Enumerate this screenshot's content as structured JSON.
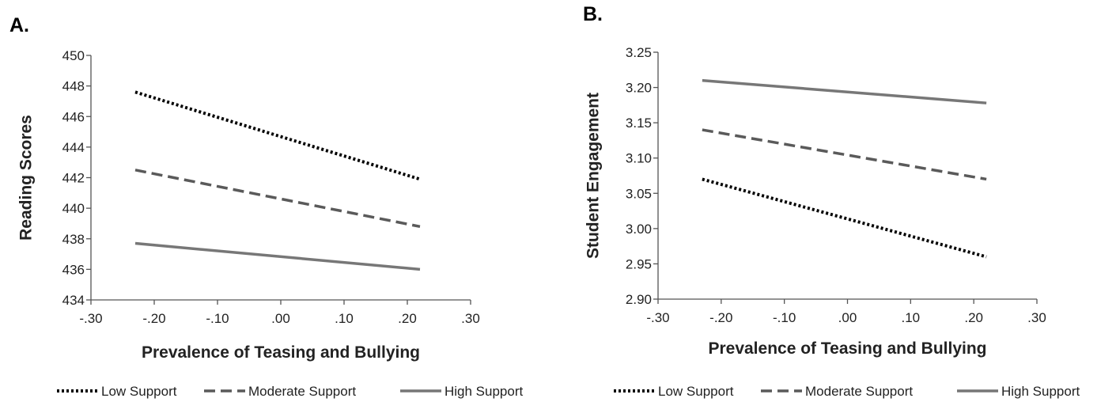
{
  "chart_data": [
    {
      "panel": "A.",
      "type": "line",
      "xlabel": "Prevalence of Teasing and Bullying",
      "ylabel": "Reading Scores",
      "xlim": [
        -0.3,
        0.3
      ],
      "ylim": [
        434,
        450
      ],
      "xticks": [
        -0.3,
        -0.2,
        -0.1,
        0.0,
        0.1,
        0.2,
        0.3
      ],
      "xtick_labels": [
        "-.30",
        "-.20",
        "-.10",
        ".00",
        ".10",
        ".20",
        ".30"
      ],
      "yticks": [
        434,
        436,
        438,
        440,
        442,
        444,
        446,
        448,
        450
      ],
      "ytick_labels": [
        "434",
        "436",
        "438",
        "440",
        "442",
        "444",
        "446",
        "448",
        "450"
      ],
      "grid": false,
      "legend_position": "bottom",
      "series": [
        {
          "name": "Low Support",
          "style": "dotted",
          "color": "#000000",
          "x": [
            -0.23,
            0.22
          ],
          "y": [
            447.6,
            441.9
          ]
        },
        {
          "name": "Moderate Support",
          "style": "dashed",
          "color": "#5a5a5a",
          "x": [
            -0.23,
            0.22
          ],
          "y": [
            442.5,
            438.8
          ]
        },
        {
          "name": "High Support",
          "style": "solid",
          "color": "#777777",
          "x": [
            -0.23,
            0.22
          ],
          "y": [
            437.7,
            436.0
          ]
        }
      ]
    },
    {
      "panel": "B.",
      "type": "line",
      "xlabel": "Prevalence of Teasing and Bullying",
      "ylabel": "Student Engagement",
      "xlim": [
        -0.3,
        0.3
      ],
      "ylim": [
        2.9,
        3.25
      ],
      "xticks": [
        -0.3,
        -0.2,
        -0.1,
        0.0,
        0.1,
        0.2,
        0.3
      ],
      "xtick_labels": [
        "-.30",
        "-.20",
        "-.10",
        ".00",
        ".10",
        ".20",
        ".30"
      ],
      "yticks": [
        2.9,
        2.95,
        3.0,
        3.05,
        3.1,
        3.15,
        3.2,
        3.25
      ],
      "ytick_labels": [
        "2.90",
        "2.95",
        "3.00",
        "3.05",
        "3.10",
        "3.15",
        "3.20",
        "3.25"
      ],
      "grid": false,
      "legend_position": "bottom",
      "series": [
        {
          "name": "Low Support",
          "style": "dotted",
          "color": "#000000",
          "x": [
            -0.23,
            0.22
          ],
          "y": [
            3.07,
            2.96
          ]
        },
        {
          "name": "Moderate Support",
          "style": "dashed",
          "color": "#5a5a5a",
          "x": [
            -0.23,
            0.22
          ],
          "y": [
            3.14,
            3.07
          ]
        },
        {
          "name": "High Support",
          "style": "solid",
          "color": "#777777",
          "x": [
            -0.23,
            0.22
          ],
          "y": [
            3.21,
            3.178
          ]
        }
      ]
    }
  ]
}
